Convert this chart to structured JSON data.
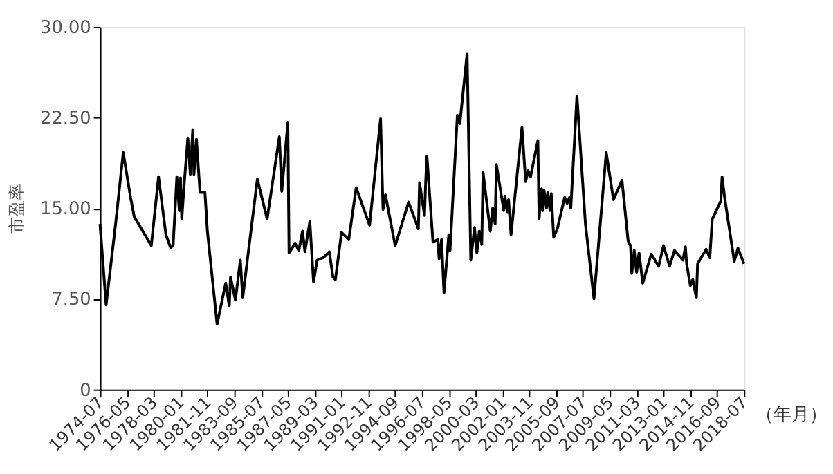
{
  "chart_data": {
    "type": "line",
    "ylabel": "市盈率",
    "xlabel": "（年月）",
    "x": [
      "1974-07",
      "1974-12",
      "1975-07",
      "1975-08",
      "1976-02",
      "1976-08",
      "1976-11",
      "1978-01",
      "1978-07",
      "1979-01",
      "1979-05",
      "1979-07",
      "1979-10",
      "1979-12",
      "1980-01",
      "1980-02",
      "1980-04",
      "1980-07",
      "1980-09",
      "1980-11",
      "1980-12",
      "1981-02",
      "1981-05",
      "1981-09",
      "1981-11",
      "1982-07",
      "1983-02",
      "1983-05",
      "1983-06",
      "1983-10",
      "1984-02",
      "1984-04",
      "1985-04",
      "1985-12",
      "1986-10",
      "1986-12",
      "1987-05",
      "1987-06",
      "1987-11",
      "1988-02",
      "1988-05",
      "1988-07",
      "1988-11",
      "1989-02",
      "1989-05",
      "1989-10",
      "1990-03",
      "1990-06",
      "1990-08",
      "1991-01",
      "1991-07",
      "1992-01",
      "1992-12",
      "1993-09",
      "1993-11",
      "1994-01",
      "1994-09",
      "1995-08",
      "1996-04",
      "1996-05",
      "1996-09",
      "1996-10",
      "1996-11",
      "1997-04",
      "1997-08",
      "1997-09",
      "1997-11",
      "1998-01",
      "1998-05",
      "1998-06",
      "1998-12",
      "1999-02",
      "1999-08",
      "1999-11",
      "2000-02",
      "2000-04",
      "2000-06",
      "2000-08",
      "2000-09",
      "2001-03",
      "2001-05",
      "2001-07",
      "2001-08",
      "2002-02",
      "2002-03",
      "2002-05",
      "2002-06",
      "2002-08",
      "2003-05",
      "2003-08",
      "2003-10",
      "2003-12",
      "2004-06",
      "2004-07",
      "2004-09",
      "2004-10",
      "2004-11",
      "2005-01",
      "2005-02",
      "2005-04",
      "2005-05",
      "2005-07",
      "2005-10",
      "2006-04",
      "2006-06",
      "2006-08",
      "2006-09",
      "2007-02",
      "2007-09",
      "2008-04",
      "2009-02",
      "2009-08",
      "2010-03",
      "2010-08",
      "2010-10",
      "2010-11",
      "2011-01",
      "2011-03",
      "2011-05",
      "2011-08",
      "2012-03",
      "2012-09",
      "2013-01",
      "2013-06",
      "2013-10",
      "2014-05",
      "2014-07",
      "2014-08",
      "2014-11",
      "2015-01",
      "2015-04",
      "2015-05",
      "2015-12",
      "2016-03",
      "2016-05",
      "2016-12",
      "2017-01",
      "2017-03",
      "2017-11",
      "2018-02",
      "2018-07"
    ],
    "series": [
      {
        "color": "#000000",
        "values": [
          13.7,
          7.0,
          13.0,
          13.9,
          19.6,
          15.9,
          14.3,
          11.9,
          17.6,
          12.8,
          11.7,
          12.0,
          17.6,
          14.8,
          17.5,
          14.1,
          17.0,
          20.8,
          17.8,
          21.5,
          17.8,
          20.7,
          16.3,
          16.3,
          13.1,
          5.4,
          8.8,
          6.9,
          9.3,
          7.4,
          10.7,
          7.6,
          17.4,
          14.1,
          20.9,
          16.4,
          22.1,
          11.3,
          12.1,
          11.5,
          13.1,
          11.4,
          13.9,
          8.9,
          10.7,
          10.9,
          11.4,
          9.3,
          9.1,
          13.0,
          12.4,
          16.7,
          13.6,
          22.4,
          14.9,
          16.1,
          11.9,
          15.5,
          13.3,
          17.1,
          14.4,
          17.2,
          19.3,
          12.2,
          12.4,
          10.8,
          12.4,
          8.0,
          12.8,
          11.5,
          22.7,
          22.0,
          27.8,
          10.7,
          13.4,
          11.3,
          13.1,
          12.0,
          18.0,
          13.1,
          15.0,
          13.7,
          18.6,
          14.8,
          16.0,
          14.7,
          15.7,
          12.8,
          21.7,
          17.2,
          18.1,
          17.6,
          20.6,
          14.1,
          16.6,
          14.8,
          16.5,
          15.0,
          16.3,
          14.8,
          16.2,
          12.6,
          13.3,
          15.9,
          15.4,
          15.9,
          15.0,
          24.3,
          13.7,
          7.5,
          19.6,
          15.7,
          17.3,
          12.3,
          11.9,
          9.6,
          11.5,
          9.7,
          11.3,
          8.8,
          11.2,
          10.2,
          11.9,
          10.2,
          11.5,
          10.7,
          11.8,
          10.4,
          8.6,
          9.1,
          7.6,
          10.4,
          11.6,
          10.9,
          14.1,
          15.6,
          17.6,
          16.0,
          10.6,
          11.7,
          10.4
        ]
      }
    ],
    "xlim": [
      "1974-07",
      "2018-07"
    ],
    "xticks": [
      "1974-07",
      "1976-05",
      "1978-03",
      "1980-01",
      "1981-11",
      "1983-09",
      "1985-07",
      "1987-05",
      "1989-03",
      "1991-01",
      "1992-11",
      "1994-09",
      "1996-07",
      "1998-05",
      "2000-03",
      "2002-01",
      "2003-11",
      "2005-09",
      "2007-07",
      "2009-05",
      "2011-03",
      "2013-01",
      "2014-11",
      "2016-09",
      "2018-07"
    ],
    "ylim": [
      0,
      30
    ],
    "yticks": [
      0,
      {
        "value": 7.5,
        "label": "7.50"
      },
      {
        "value": 15,
        "label": "15.00"
      },
      {
        "value": 22.5,
        "label": "22.50"
      },
      {
        "value": 30,
        "label": "30.00"
      }
    ],
    "grid": false,
    "marker": "none",
    "line_style": "solid"
  }
}
